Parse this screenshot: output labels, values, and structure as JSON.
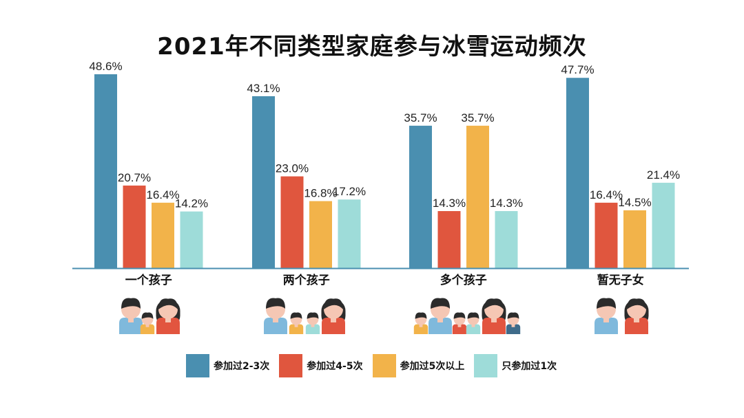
{
  "chart_data": {
    "type": "bar",
    "title": "2021年不同类型家庭参与冰雪运动频次",
    "categories": [
      "一个孩子",
      "两个孩子",
      "多个孩子",
      "暂无子女"
    ],
    "series": [
      {
        "name": "参加过2-3次",
        "color": "#4a8fb0",
        "values": [
          48.6,
          43.1,
          35.7,
          47.7
        ],
        "labels": [
          "48.6%",
          "43.1%",
          "35.7%",
          "47.7%"
        ]
      },
      {
        "name": "参加过4-5次",
        "color": "#e0563e",
        "values": [
          20.7,
          23.0,
          14.3,
          16.4
        ],
        "labels": [
          "20.7%",
          "23.0%",
          "14.3%",
          "16.4%"
        ]
      },
      {
        "name": "参加过5次以上",
        "color": "#f2b34a",
        "values": [
          16.4,
          16.8,
          35.7,
          14.5
        ],
        "labels": [
          "16.4%",
          "16.8%",
          "35.7%",
          "14.5%"
        ]
      },
      {
        "name": "只参加过1次",
        "color": "#9edcd9",
        "values": [
          14.2,
          17.2,
          14.3,
          21.4
        ],
        "labels": [
          "14.2%",
          "17.2%",
          "14.3%",
          "21.4%"
        ]
      }
    ],
    "ylim": [
      0,
      50
    ],
    "unit": "%",
    "xlabel": "",
    "ylabel": "",
    "grid": false,
    "legend_position": "bottom"
  },
  "family_icons": [
    {
      "category": "一个孩子",
      "adults": 2,
      "children": 1
    },
    {
      "category": "两个孩子",
      "adults": 2,
      "children": 2
    },
    {
      "category": "多个孩子",
      "adults": 2,
      "children": 4
    },
    {
      "category": "暂无子女",
      "adults": 2,
      "children": 0
    }
  ],
  "colors": {
    "axis": "#4a8fb0",
    "skin": "#f5c7b4",
    "hair": "#2b2b2b",
    "man_shirt": "#7fb9dc",
    "woman_shirt": "#e2553f",
    "child_shirt": "#f2b34a"
  }
}
